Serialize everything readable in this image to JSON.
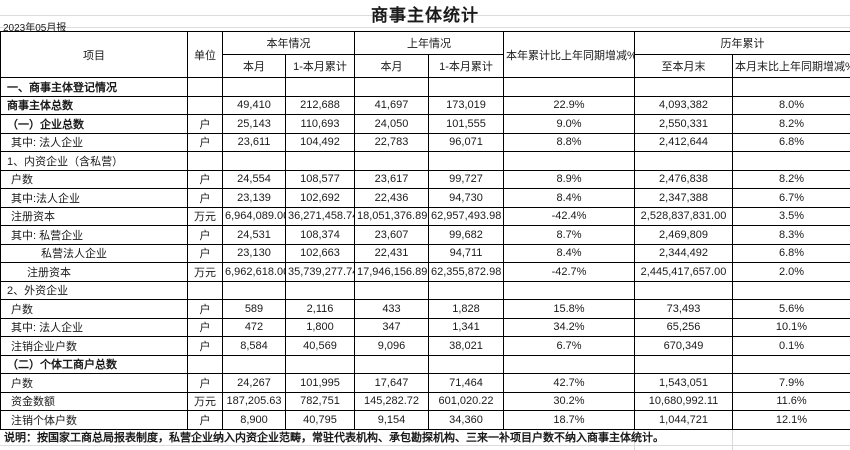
{
  "report": {
    "title": "商事主体统计",
    "period": "2023年05月报",
    "note": "说明：按国家工商总局报表制度，私营企业纳入内资企业范畴，常驻代表机构、承包勘探机构、三来一补项目户数不纳入商事主体统计。"
  },
  "table": {
    "headers": {
      "item": "项目",
      "unit": "单位",
      "this_year_group": "本年情况",
      "last_year_group": "上年情况",
      "yoy_cum": "本年累计比上年同期增减%",
      "historical_group": "历年累计",
      "this_month_1": "本月",
      "cum_1": "1-本月累计",
      "this_month_2": "本月",
      "cum_2": "1-本月累计",
      "to_month_end": "至本月末",
      "month_end_yoy": "本月末比上年同期增减%"
    },
    "rows": [
      {
        "label": "一、商事主体登记情况",
        "bold": true,
        "indent": 0,
        "unit": "",
        "cells": [
          "",
          "",
          "",
          "",
          "",
          "",
          ""
        ]
      },
      {
        "label": "商事主体总数",
        "bold": true,
        "indent": 0,
        "unit": "",
        "cells": [
          "49,410",
          "212,688",
          "41,697",
          "173,019",
          "22.9%",
          "4,093,382",
          "8.0%"
        ]
      },
      {
        "label": "（一）企业总数",
        "bold": true,
        "indent": 0,
        "unit": "户",
        "cells": [
          "25,143",
          "110,693",
          "24,050",
          "101,555",
          "9.0%",
          "2,550,331",
          "8.2%"
        ]
      },
      {
        "label": "其中: 法人企业",
        "bold": false,
        "indent": 1,
        "unit": "户",
        "cells": [
          "23,611",
          "104,492",
          "22,783",
          "96,071",
          "8.8%",
          "2,412,644",
          "6.8%"
        ]
      },
      {
        "label": "1、内资企业（含私营）",
        "bold": false,
        "indent": 0,
        "unit": "",
        "cells": [
          "",
          "",
          "",
          "",
          "",
          "",
          ""
        ]
      },
      {
        "label": "户数",
        "bold": false,
        "indent": 1,
        "unit": "户",
        "cells": [
          "24,554",
          "108,577",
          "23,617",
          "99,727",
          "8.9%",
          "2,476,838",
          "8.2%"
        ]
      },
      {
        "label": "其中:法人企业",
        "bold": false,
        "indent": 1,
        "unit": "户",
        "cells": [
          "23,139",
          "102,692",
          "22,436",
          "94,730",
          "8.4%",
          "2,347,388",
          "6.7%"
        ]
      },
      {
        "label": "注册资本",
        "bold": false,
        "indent": 1,
        "unit": "万元",
        "cells": [
          "6,964,089.00",
          "36,271,458.74",
          "18,051,376.89",
          "62,957,493.98",
          "-42.4%",
          "2,528,837,831.00",
          "3.5%"
        ]
      },
      {
        "label": "其中: 私营企业",
        "bold": false,
        "indent": 1,
        "unit": "户",
        "cells": [
          "24,531",
          "108,374",
          "23,607",
          "99,682",
          "8.7%",
          "2,469,809",
          "8.3%"
        ]
      },
      {
        "label": "私营法人企业",
        "bold": false,
        "indent": 3,
        "unit": "户",
        "cells": [
          "23,130",
          "102,663",
          "22,431",
          "94,711",
          "8.4%",
          "2,344,492",
          "6.8%"
        ]
      },
      {
        "label": "注册资本",
        "bold": false,
        "indent": 2,
        "unit": "万元",
        "cells": [
          "6,962,618.00",
          "35,739,277.74",
          "17,946,156.89",
          "62,355,872.98",
          "-42.7%",
          "2,445,417,657.00",
          "2.0%"
        ]
      },
      {
        "label": "2、外资企业",
        "bold": false,
        "indent": 0,
        "unit": "",
        "cells": [
          "",
          "",
          "",
          "",
          "",
          "",
          ""
        ]
      },
      {
        "label": "户数",
        "bold": false,
        "indent": 1,
        "unit": "户",
        "cells": [
          "589",
          "2,116",
          "433",
          "1,828",
          "15.8%",
          "73,493",
          "5.6%"
        ]
      },
      {
        "label": "其中: 法人企业",
        "bold": false,
        "indent": 1,
        "unit": "户",
        "cells": [
          "472",
          "1,800",
          "347",
          "1,341",
          "34.2%",
          "65,256",
          "10.1%"
        ]
      },
      {
        "label": "注销企业户数",
        "bold": false,
        "indent": 1,
        "unit": "户",
        "cells": [
          "8,584",
          "40,569",
          "9,096",
          "38,021",
          "6.7%",
          "670,349",
          "0.1%"
        ]
      },
      {
        "label": "（二）个体工商户总数",
        "bold": true,
        "indent": 0,
        "unit": "",
        "cells": [
          "",
          "",
          "",
          "",
          "",
          "",
          ""
        ]
      },
      {
        "label": "户数",
        "bold": false,
        "indent": 1,
        "unit": "户",
        "cells": [
          "24,267",
          "101,995",
          "17,647",
          "71,464",
          "42.7%",
          "1,543,051",
          "7.9%"
        ]
      },
      {
        "label": "资金数额",
        "bold": false,
        "indent": 1,
        "unit": "万元",
        "cells": [
          "187,205.63",
          "782,751",
          "145,282.72",
          "601,020.22",
          "30.2%",
          "10,680,992.11",
          "11.6%"
        ]
      },
      {
        "label": "注销个体户数",
        "bold": false,
        "indent": 1,
        "unit": "户",
        "cells": [
          "8,900",
          "40,795",
          "9,154",
          "34,360",
          "18.7%",
          "1,044,721",
          "12.1%"
        ]
      }
    ]
  }
}
